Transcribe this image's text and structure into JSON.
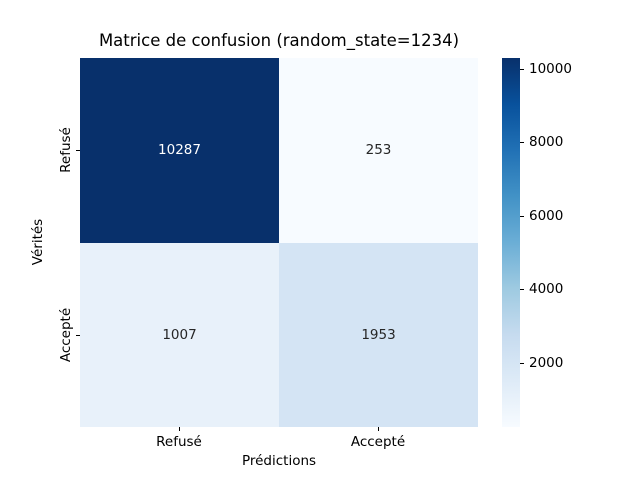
{
  "chart_data": {
    "type": "heatmap",
    "title": "Matrice de confusion (random_state=1234)",
    "xlabel": "Prédictions",
    "ylabel": "Vérités",
    "x_categories": [
      "Refusé",
      "Accepté"
    ],
    "y_categories": [
      "Refusé",
      "Accepté"
    ],
    "matrix": [
      [
        10287,
        253
      ],
      [
        1007,
        1953
      ]
    ],
    "vmin": 253,
    "vmax": 10287,
    "colormap": "Blues",
    "cell_colors": [
      [
        "#08306b",
        "#f7fbff"
      ],
      [
        "#e8f1fa",
        "#d4e4f4"
      ]
    ],
    "cell_text_colors": [
      [
        "#ffffff",
        "#262626"
      ],
      [
        "#262626",
        "#262626"
      ]
    ],
    "colorbar": {
      "ticks": [
        2000,
        4000,
        6000,
        8000,
        10000
      ],
      "gradient_stops_bottom_to_top": [
        "#f7fbff",
        "#deebf7",
        "#c6dbef",
        "#9ecae1",
        "#6baed6",
        "#4292c6",
        "#2171b5",
        "#08519c",
        "#08306b"
      ]
    },
    "grid": false,
    "legend": false
  }
}
